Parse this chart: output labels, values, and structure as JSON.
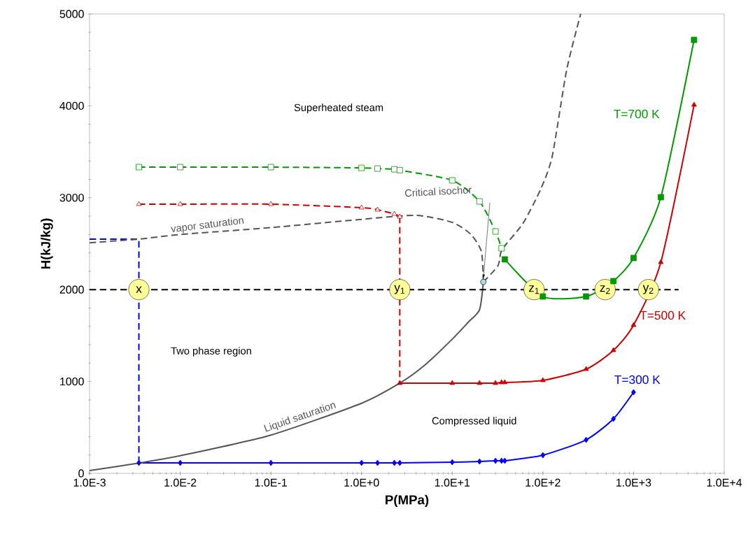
{
  "chart_data": {
    "type": "line",
    "xlabel": "P(MPa)",
    "ylabel": "H(kJ/kg)",
    "log": "x",
    "xlim": [
      0.001,
      10000
    ],
    "ylim": [
      0,
      5000
    ],
    "xticks": [
      {
        "value": 0.001,
        "label": "1.0E-3"
      },
      {
        "value": 0.01,
        "label": "1.0E-2"
      },
      {
        "value": 0.1,
        "label": "1.0E-1"
      },
      {
        "value": 1,
        "label": "1.0E+0"
      },
      {
        "value": 10,
        "label": "1.0E+1"
      },
      {
        "value": 100,
        "label": "1.0E+2"
      },
      {
        "value": 1000,
        "label": "1.0E+3"
      },
      {
        "value": 10000,
        "label": "1.0E+4"
      }
    ],
    "yticks": [
      0,
      1000,
      2000,
      3000,
      4000,
      5000
    ],
    "series": [
      {
        "color": "#009900",
        "line_style": "dashed",
        "marker": "square",
        "x": [
          0.0035,
          0.01,
          0.1,
          1,
          1.5,
          2.3,
          2.64,
          10,
          20,
          30,
          35
        ],
        "values": [
          3333,
          3333,
          3333,
          3325,
          3318,
          3310,
          3300,
          3189,
          2960,
          2633,
          2450
        ]
      },
      {
        "name": "T=700 K",
        "color": "#009900",
        "line_style": "solid",
        "marker": "square",
        "x": [
          38,
          100,
          300,
          600,
          1000,
          2000,
          4650
        ],
        "values": [
          2329,
          1925,
          1925,
          2093,
          2344,
          3006,
          4718
        ]
      },
      {
        "color": "#cc0000",
        "line_style": "dashed",
        "marker": "triangle",
        "x": [
          0.0035,
          0.01,
          0.1,
          1,
          1.5,
          2.3,
          2.64
        ],
        "values": [
          2930,
          2930,
          2930,
          2892,
          2869,
          2823,
          2793
        ]
      },
      {
        "name": "T=500 K",
        "color": "#cc0000",
        "line_style": "solid",
        "marker": "triangle",
        "x": [
          2.64,
          10,
          20,
          30,
          35,
          38,
          100,
          300,
          600,
          1000,
          2000,
          4650
        ],
        "values": [
          982,
          982,
          982,
          982,
          990,
          990,
          1012,
          1134,
          1339,
          1613,
          2298,
          4010
        ]
      },
      {
        "color": "#cc0000",
        "line_style": "dashed",
        "marker": "none",
        "x": [
          2.64,
          2.64
        ],
        "values": [
          2793,
          982
        ]
      },
      {
        "name": "T=300 K",
        "color": "#0000ff",
        "line_style": "solid",
        "marker": "diamond",
        "x": [
          0.0035,
          0.01,
          0.1,
          1,
          1.5,
          2.3,
          2.64,
          10,
          20,
          30,
          35,
          38,
          100,
          300,
          600,
          1000
        ],
        "values": [
          114,
          114,
          114,
          114,
          114,
          114,
          114,
          122,
          129,
          137,
          137,
          137,
          198,
          365,
          594,
          883
        ]
      },
      {
        "color": "#0000ff",
        "line_style": "dashed",
        "marker": "none",
        "x": [
          0.001,
          0.0035,
          0.0035
        ],
        "values": [
          2550,
          2550,
          114
        ]
      },
      {
        "name": "vapor saturation",
        "color": "#555555",
        "line_style": "dashed",
        "marker": "none",
        "x": [
          0.001,
          0.0035,
          0.01,
          0.1,
          1,
          4,
          10,
          16,
          21,
          22.06
        ],
        "values": [
          2510,
          2550,
          2600,
          2675,
          2765,
          2808,
          2732,
          2603,
          2413,
          2084
        ]
      },
      {
        "name": "Liquid saturation",
        "color": "#555555",
        "line_style": "solid",
        "marker": "none",
        "x": [
          0.001,
          0.0035,
          0.01,
          0.1,
          1,
          2.64,
          5,
          10,
          15,
          20,
          22.06
        ],
        "values": [
          30,
          112,
          192,
          417,
          763,
          982,
          1180,
          1460,
          1644,
          1780,
          2084
        ]
      },
      {
        "name": "Critical isochor",
        "color": "#555555",
        "line_style": "dashed",
        "marker": "none",
        "x": [
          22.06,
          32,
          35.4,
          60,
          95,
          127,
          183,
          261
        ],
        "values": [
          2084,
          2260,
          2435,
          2717,
          3097,
          3455,
          4391,
          5000
        ]
      },
      {
        "color": "#000000",
        "line_style": "dashed",
        "marker": "none",
        "x": [
          0.001,
          3140
        ],
        "values": [
          2000,
          2000
        ]
      },
      {
        "type": "scatter",
        "color": "#add8e6",
        "marker": "circle",
        "x": [
          22.06
        ],
        "values": [
          2084
        ]
      }
    ],
    "annotations": [
      "Superheated steam",
      "Two phase region",
      "Compressed liquid",
      {
        "text": "x",
        "x": 0.0035,
        "y": 2000
      },
      {
        "text": "y$_{1}$",
        "x": 2.64,
        "y": 2000
      },
      {
        "text": "z$_{1}$",
        "x": 80,
        "y": 2000
      },
      {
        "text": "z$_{2}$",
        "x": 486,
        "y": 2000
      },
      {
        "text": "y$_{2}$",
        "x": 1460,
        "y": 2000
      }
    ]
  }
}
